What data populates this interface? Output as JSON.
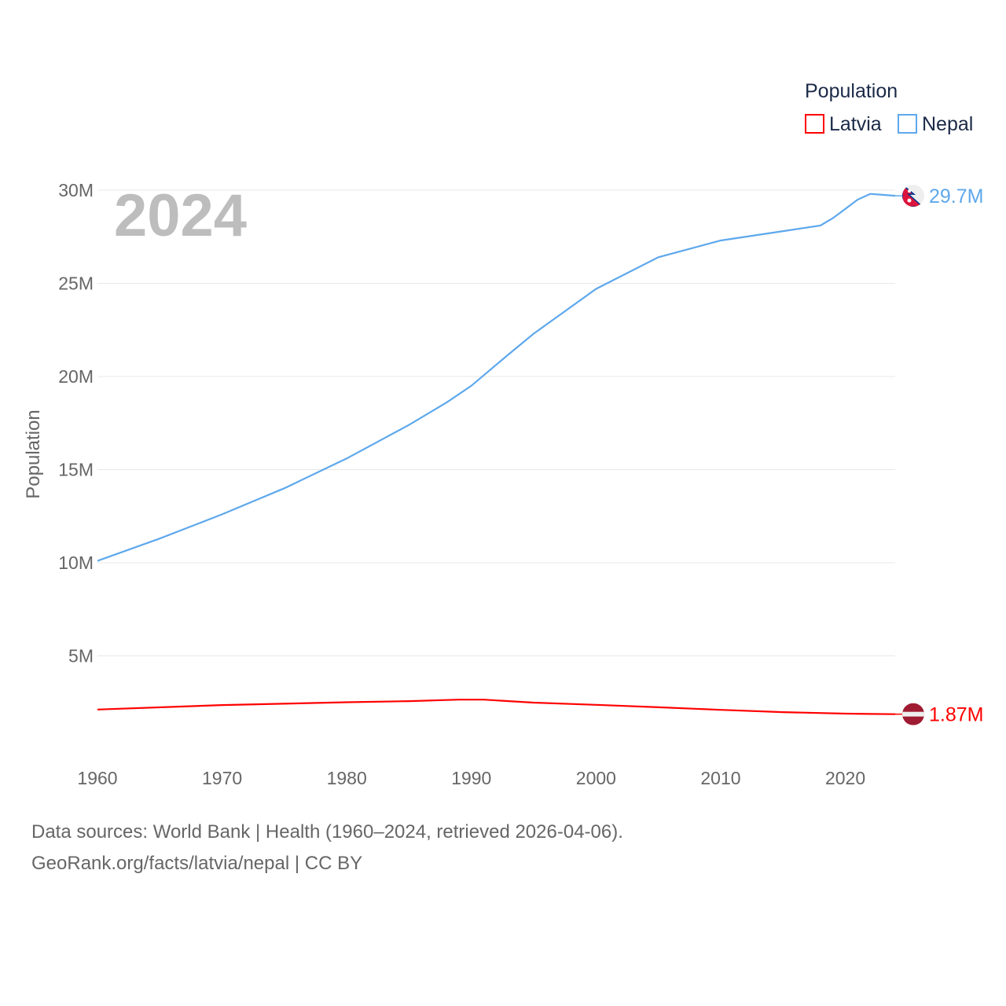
{
  "chart_data": {
    "type": "line",
    "title": "",
    "year_label": "2024",
    "xlabel": "",
    "ylabel": "Population",
    "xlim": [
      1960,
      2024
    ],
    "ylim": [
      0,
      30000000
    ],
    "grid": true,
    "x_ticks": [
      1960,
      1970,
      1980,
      1990,
      2000,
      2010,
      2020
    ],
    "x_tick_labels": [
      "1960",
      "1970",
      "1980",
      "1990",
      "2000",
      "2010",
      "2020"
    ],
    "y_ticks": [
      5000000,
      10000000,
      15000000,
      20000000,
      25000000,
      30000000
    ],
    "y_tick_labels": [
      "5M",
      "10M",
      "15M",
      "20M",
      "25M",
      "30M"
    ],
    "legend": {
      "title": "Population",
      "placement": "top-right",
      "entries": [
        "Latvia",
        "Nepal"
      ]
    },
    "series": [
      {
        "name": "Latvia",
        "color": "#ff0000",
        "end_label": "1.87M",
        "x": [
          1960,
          1970,
          1980,
          1985,
          1989,
          1991,
          1995,
          2000,
          2005,
          2010,
          2015,
          2020,
          2022,
          2024
        ],
        "values": [
          2120000,
          2360000,
          2510000,
          2570000,
          2650000,
          2650000,
          2490000,
          2370000,
          2240000,
          2100000,
          1980000,
          1900000,
          1880000,
          1870000
        ]
      },
      {
        "name": "Nepal",
        "color": "#5ea8ec",
        "end_label": "29.7M",
        "x": [
          1960,
          1965,
          1970,
          1975,
          1980,
          1985,
          1988,
          1990,
          1993,
          1995,
          2000,
          2005,
          2010,
          2013,
          2015,
          2018,
          2019,
          2020,
          2021,
          2022,
          2023,
          2024
        ],
        "values": [
          10100000,
          11300000,
          12600000,
          14000000,
          15600000,
          17400000,
          18600000,
          19500000,
          21200000,
          22300000,
          24700000,
          26400000,
          27300000,
          27600000,
          27800000,
          28100000,
          28500000,
          29000000,
          29500000,
          29800000,
          29750000,
          29700000
        ]
      }
    ]
  },
  "footer": {
    "line1": "Data sources: World Bank | Health (1960–2024, retrieved 2026-04-06).",
    "line2": "GeoRank.org/facts/latvia/nepal | CC BY"
  }
}
